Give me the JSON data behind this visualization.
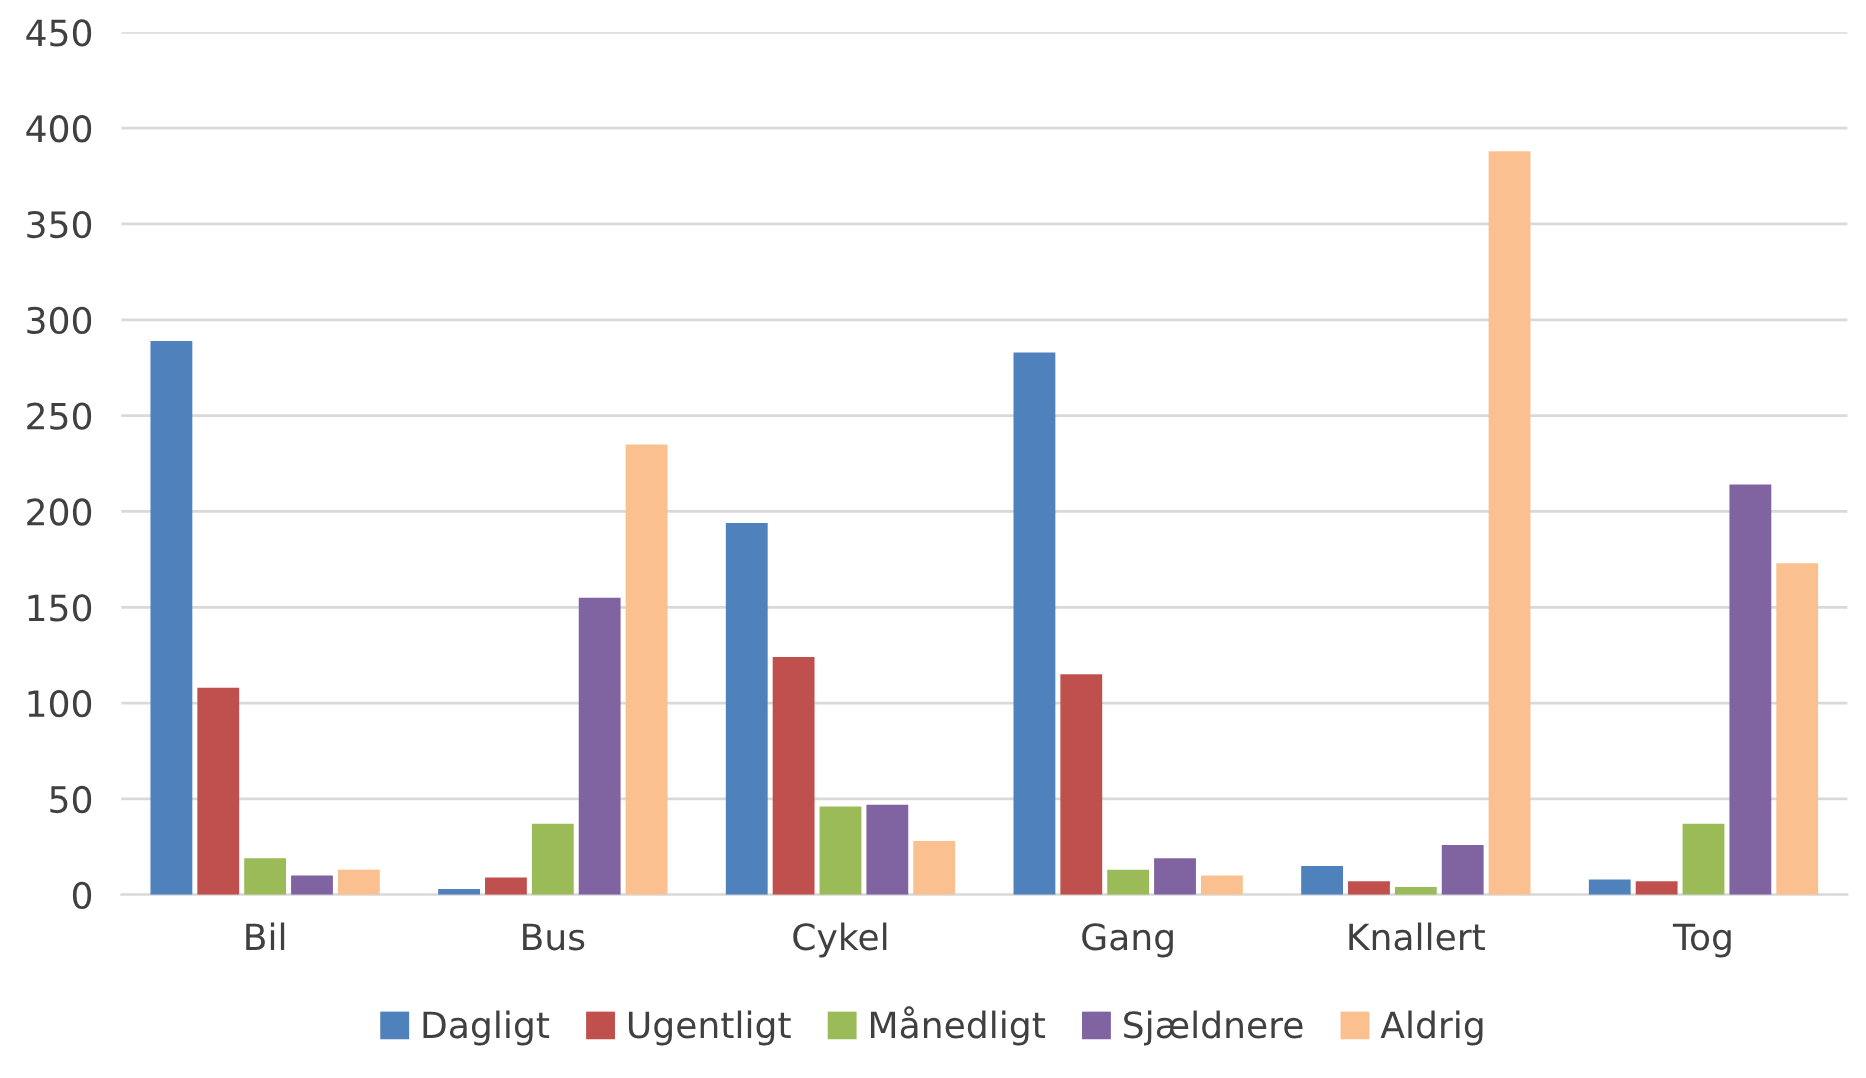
{
  "chart_data": {
    "type": "bar",
    "categories": [
      "Bil",
      "Bus",
      "Cykel",
      "Gang",
      "Knallert",
      "Tog"
    ],
    "series": [
      {
        "name": "Dagligt",
        "color": "#4f81bd",
        "values": [
          289,
          3,
          194,
          283,
          15,
          8
        ]
      },
      {
        "name": "Ugentligt",
        "color": "#c0504d",
        "values": [
          108,
          9,
          124,
          115,
          7,
          7
        ]
      },
      {
        "name": "Månedligt",
        "color": "#9bbb59",
        "values": [
          19,
          37,
          46,
          13,
          4,
          37
        ]
      },
      {
        "name": "Sjældnere",
        "color": "#8064a2",
        "values": [
          10,
          155,
          47,
          19,
          26,
          214
        ]
      },
      {
        "name": "Aldrig",
        "color": "#fac090",
        "values": [
          13,
          235,
          28,
          10,
          388,
          173
        ]
      }
    ],
    "ylim": [
      0,
      450
    ],
    "yticks": [
      0,
      50,
      100,
      150,
      200,
      250,
      300,
      350,
      400,
      450
    ],
    "grid": "y",
    "legend": "bottom"
  }
}
